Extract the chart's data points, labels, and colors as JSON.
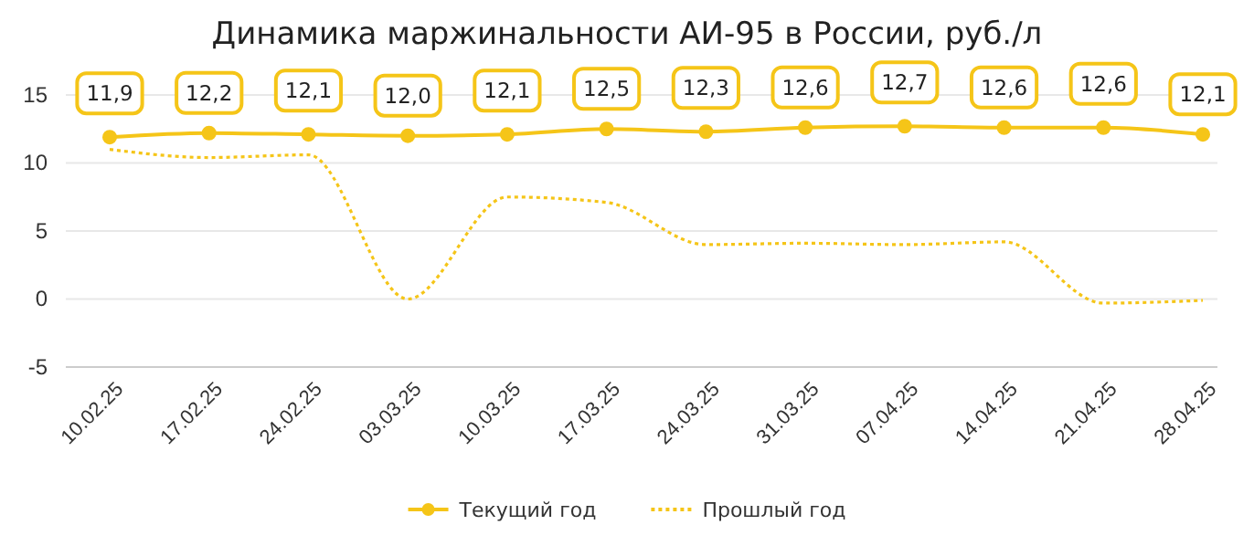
{
  "chart_data": {
    "type": "line",
    "title": "Динамика маржинальности АИ-95 в России, руб./л",
    "categories": [
      "10.02.25",
      "17.02.25",
      "24.02.25",
      "03.03.25",
      "10.03.25",
      "17.03.25",
      "24.03.25",
      "31.03.25",
      "07.04.25",
      "14.04.25",
      "21.04.25",
      "28.04.25"
    ],
    "series": [
      {
        "name": "Текущий год",
        "color": "#f5c518",
        "marker": "circle",
        "line_style": "solid",
        "values": [
          11.9,
          12.2,
          12.1,
          12.0,
          12.1,
          12.5,
          12.3,
          12.6,
          12.7,
          12.6,
          12.6,
          12.1
        ],
        "value_labels": [
          "11,9",
          "12,2",
          "12,1",
          "12,0",
          "12,1",
          "12,5",
          "12,3",
          "12,6",
          "12,7",
          "12,6",
          "12,6",
          "12,1"
        ]
      },
      {
        "name": "Прошлый год",
        "color": "#f5c518",
        "marker": "none",
        "line_style": "dotted",
        "values": [
          11.0,
          10.4,
          10.6,
          0.0,
          7.5,
          7.1,
          4.0,
          4.1,
          4.0,
          4.2,
          -0.3,
          -0.1
        ]
      }
    ],
    "ylim": [
      -5,
      15
    ],
    "yticks": [
      -5,
      0,
      5,
      10,
      15
    ],
    "grid": "y",
    "legend": "bottom"
  }
}
